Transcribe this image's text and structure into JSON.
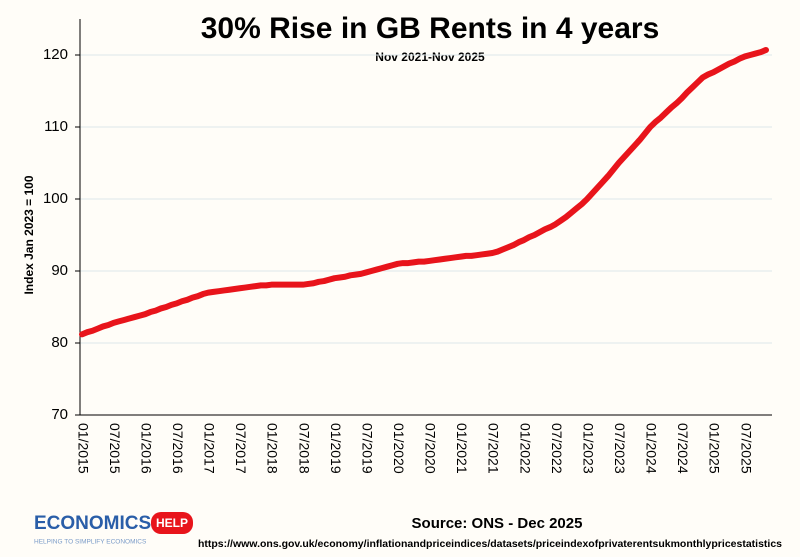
{
  "chart_data": {
    "type": "line",
    "title": "30% Rise in GB Rents in 4 years",
    "subtitle": "Nov 2021-Nov 2025",
    "y_label": "Index Jan 2023 = 100",
    "source": "Source: ONS - Dec 2025",
    "url": "https://www.ons.gov.uk/economy/inflationandpriceindices/datasets/priceindexofprivaterentsukmonthlypricestatistics",
    "logo": {
      "text": "ECONOMICS",
      "badge": "HELP",
      "tagline": "HELPING TO SIMPLIFY ECONOMICS"
    },
    "color": "#e8141b",
    "categories": [
      "01/2015",
      null,
      null,
      null,
      null,
      null,
      "07/2015",
      null,
      null,
      null,
      null,
      null,
      "01/2016",
      null,
      null,
      null,
      null,
      null,
      "07/2016",
      null,
      null,
      null,
      null,
      null,
      "01/2017",
      null,
      null,
      null,
      null,
      null,
      "07/2017",
      null,
      null,
      null,
      null,
      null,
      "01/2018",
      null,
      null,
      null,
      null,
      null,
      "07/2018",
      null,
      null,
      null,
      null,
      null,
      "01/2019",
      null,
      null,
      null,
      null,
      null,
      "07/2019",
      null,
      null,
      null,
      null,
      null,
      "01/2020",
      null,
      null,
      null,
      null,
      null,
      "07/2020",
      null,
      null,
      null,
      null,
      null,
      "01/2021",
      null,
      null,
      null,
      null,
      null,
      "07/2021",
      null,
      null,
      null,
      null,
      null,
      "01/2022",
      null,
      null,
      null,
      null,
      null,
      "07/2022",
      null,
      null,
      null,
      null,
      null,
      "01/2023",
      null,
      null,
      null,
      null,
      null,
      "07/2023",
      null,
      null,
      null,
      null,
      null,
      "01/2024",
      null,
      null,
      null,
      null,
      null,
      "07/2024",
      null,
      null,
      null,
      null,
      null,
      "01/2025",
      null,
      null,
      null,
      null,
      null,
      "07/2025",
      null,
      null,
      null,
      null
    ],
    "values": [
      81.2,
      81.5,
      81.7,
      82.0,
      82.3,
      82.5,
      82.8,
      83.0,
      83.2,
      83.4,
      83.6,
      83.8,
      84.0,
      84.3,
      84.5,
      84.8,
      85.0,
      85.3,
      85.5,
      85.8,
      86.0,
      86.3,
      86.5,
      86.8,
      87.0,
      87.1,
      87.2,
      87.3,
      87.4,
      87.5,
      87.6,
      87.7,
      87.8,
      87.9,
      88.0,
      88.0,
      88.1,
      88.1,
      88.1,
      88.1,
      88.1,
      88.1,
      88.1,
      88.2,
      88.3,
      88.5,
      88.6,
      88.8,
      89.0,
      89.1,
      89.2,
      89.4,
      89.5,
      89.6,
      89.8,
      90.0,
      90.2,
      90.4,
      90.6,
      90.8,
      91.0,
      91.1,
      91.1,
      91.2,
      91.3,
      91.3,
      91.4,
      91.5,
      91.6,
      91.7,
      91.8,
      91.9,
      92.0,
      92.1,
      92.1,
      92.2,
      92.3,
      92.4,
      92.5,
      92.7,
      93.0,
      93.3,
      93.6,
      94.0,
      94.3,
      94.7,
      95.0,
      95.4,
      95.8,
      96.1,
      96.5,
      97.0,
      97.5,
      98.1,
      98.7,
      99.3,
      100.0,
      100.8,
      101.6,
      102.4,
      103.2,
      104.1,
      105.0,
      105.8,
      106.6,
      107.4,
      108.2,
      109.1,
      110.0,
      110.7,
      111.3,
      112.0,
      112.7,
      113.3,
      114.0,
      114.8,
      115.5,
      116.2,
      116.9,
      117.3,
      117.6,
      118.0,
      118.4,
      118.8,
      119.1,
      119.5,
      119.8,
      120.0,
      120.2,
      120.4,
      120.7
    ],
    "ylim": [
      70,
      125
    ],
    "yticks": [
      70,
      80,
      90,
      100,
      110,
      120
    ],
    "grid": true
  }
}
